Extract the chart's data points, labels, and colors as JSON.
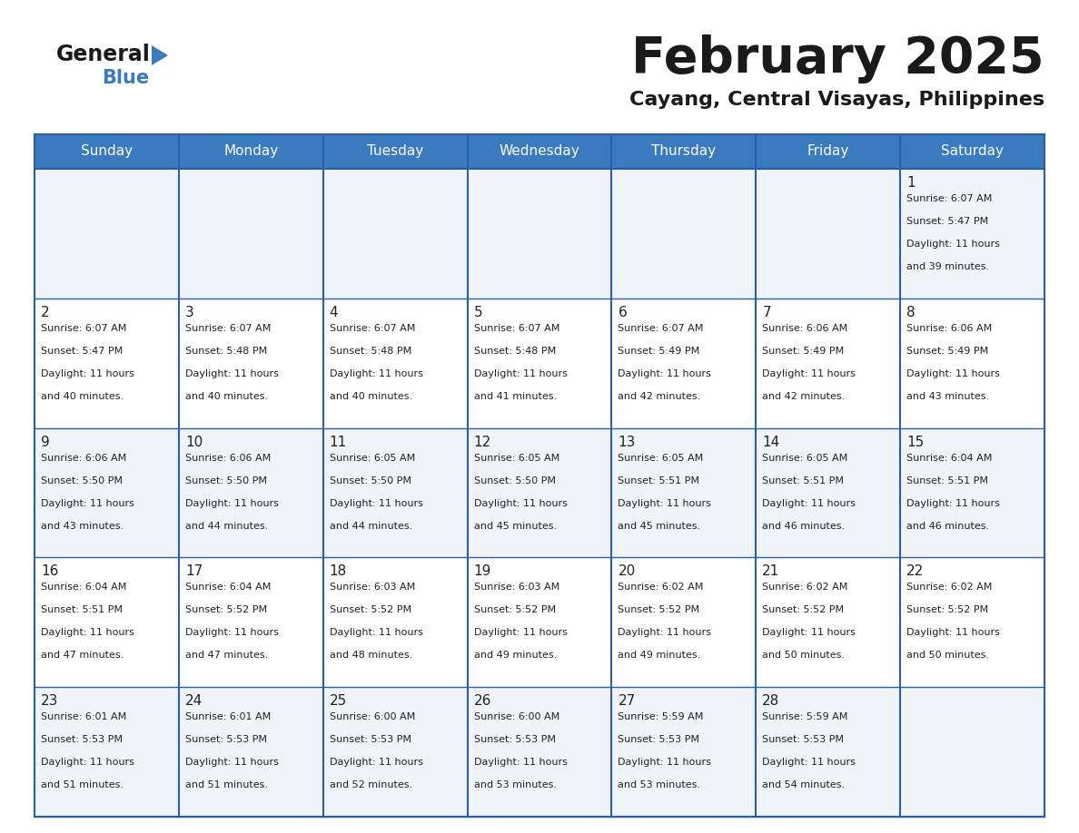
{
  "title": "February 2025",
  "subtitle": "Cayang, Central Visayas, Philippines",
  "header_color": "#3a7abf",
  "header_text_color": "#ffffff",
  "cell_bg_even": "#f0f4f8",
  "cell_bg_odd": "#ffffff",
  "border_color": "#2a5fa8",
  "text_color": "#222222",
  "days_of_week": [
    "Sunday",
    "Monday",
    "Tuesday",
    "Wednesday",
    "Thursday",
    "Friday",
    "Saturday"
  ],
  "calendar": [
    [
      null,
      null,
      null,
      null,
      null,
      null,
      1
    ],
    [
      2,
      3,
      4,
      5,
      6,
      7,
      8
    ],
    [
      9,
      10,
      11,
      12,
      13,
      14,
      15
    ],
    [
      16,
      17,
      18,
      19,
      20,
      21,
      22
    ],
    [
      23,
      24,
      25,
      26,
      27,
      28,
      null
    ]
  ],
  "day_data": {
    "1": {
      "sunrise": "6:07 AM",
      "sunset": "5:47 PM",
      "daylight_hours": 11,
      "daylight_minutes": 39
    },
    "2": {
      "sunrise": "6:07 AM",
      "sunset": "5:47 PM",
      "daylight_hours": 11,
      "daylight_minutes": 40
    },
    "3": {
      "sunrise": "6:07 AM",
      "sunset": "5:48 PM",
      "daylight_hours": 11,
      "daylight_minutes": 40
    },
    "4": {
      "sunrise": "6:07 AM",
      "sunset": "5:48 PM",
      "daylight_hours": 11,
      "daylight_minutes": 40
    },
    "5": {
      "sunrise": "6:07 AM",
      "sunset": "5:48 PM",
      "daylight_hours": 11,
      "daylight_minutes": 41
    },
    "6": {
      "sunrise": "6:07 AM",
      "sunset": "5:49 PM",
      "daylight_hours": 11,
      "daylight_minutes": 42
    },
    "7": {
      "sunrise": "6:06 AM",
      "sunset": "5:49 PM",
      "daylight_hours": 11,
      "daylight_minutes": 42
    },
    "8": {
      "sunrise": "6:06 AM",
      "sunset": "5:49 PM",
      "daylight_hours": 11,
      "daylight_minutes": 43
    },
    "9": {
      "sunrise": "6:06 AM",
      "sunset": "5:50 PM",
      "daylight_hours": 11,
      "daylight_minutes": 43
    },
    "10": {
      "sunrise": "6:06 AM",
      "sunset": "5:50 PM",
      "daylight_hours": 11,
      "daylight_minutes": 44
    },
    "11": {
      "sunrise": "6:05 AM",
      "sunset": "5:50 PM",
      "daylight_hours": 11,
      "daylight_minutes": 44
    },
    "12": {
      "sunrise": "6:05 AM",
      "sunset": "5:50 PM",
      "daylight_hours": 11,
      "daylight_minutes": 45
    },
    "13": {
      "sunrise": "6:05 AM",
      "sunset": "5:51 PM",
      "daylight_hours": 11,
      "daylight_minutes": 45
    },
    "14": {
      "sunrise": "6:05 AM",
      "sunset": "5:51 PM",
      "daylight_hours": 11,
      "daylight_minutes": 46
    },
    "15": {
      "sunrise": "6:04 AM",
      "sunset": "5:51 PM",
      "daylight_hours": 11,
      "daylight_minutes": 46
    },
    "16": {
      "sunrise": "6:04 AM",
      "sunset": "5:51 PM",
      "daylight_hours": 11,
      "daylight_minutes": 47
    },
    "17": {
      "sunrise": "6:04 AM",
      "sunset": "5:52 PM",
      "daylight_hours": 11,
      "daylight_minutes": 47
    },
    "18": {
      "sunrise": "6:03 AM",
      "sunset": "5:52 PM",
      "daylight_hours": 11,
      "daylight_minutes": 48
    },
    "19": {
      "sunrise": "6:03 AM",
      "sunset": "5:52 PM",
      "daylight_hours": 11,
      "daylight_minutes": 49
    },
    "20": {
      "sunrise": "6:02 AM",
      "sunset": "5:52 PM",
      "daylight_hours": 11,
      "daylight_minutes": 49
    },
    "21": {
      "sunrise": "6:02 AM",
      "sunset": "5:52 PM",
      "daylight_hours": 11,
      "daylight_minutes": 50
    },
    "22": {
      "sunrise": "6:02 AM",
      "sunset": "5:52 PM",
      "daylight_hours": 11,
      "daylight_minutes": 50
    },
    "23": {
      "sunrise": "6:01 AM",
      "sunset": "5:53 PM",
      "daylight_hours": 11,
      "daylight_minutes": 51
    },
    "24": {
      "sunrise": "6:01 AM",
      "sunset": "5:53 PM",
      "daylight_hours": 11,
      "daylight_minutes": 51
    },
    "25": {
      "sunrise": "6:00 AM",
      "sunset": "5:53 PM",
      "daylight_hours": 11,
      "daylight_minutes": 52
    },
    "26": {
      "sunrise": "6:00 AM",
      "sunset": "5:53 PM",
      "daylight_hours": 11,
      "daylight_minutes": 53
    },
    "27": {
      "sunrise": "5:59 AM",
      "sunset": "5:53 PM",
      "daylight_hours": 11,
      "daylight_minutes": 53
    },
    "28": {
      "sunrise": "5:59 AM",
      "sunset": "5:53 PM",
      "daylight_hours": 11,
      "daylight_minutes": 54
    }
  },
  "fig_width": 11.88,
  "fig_height": 9.18
}
